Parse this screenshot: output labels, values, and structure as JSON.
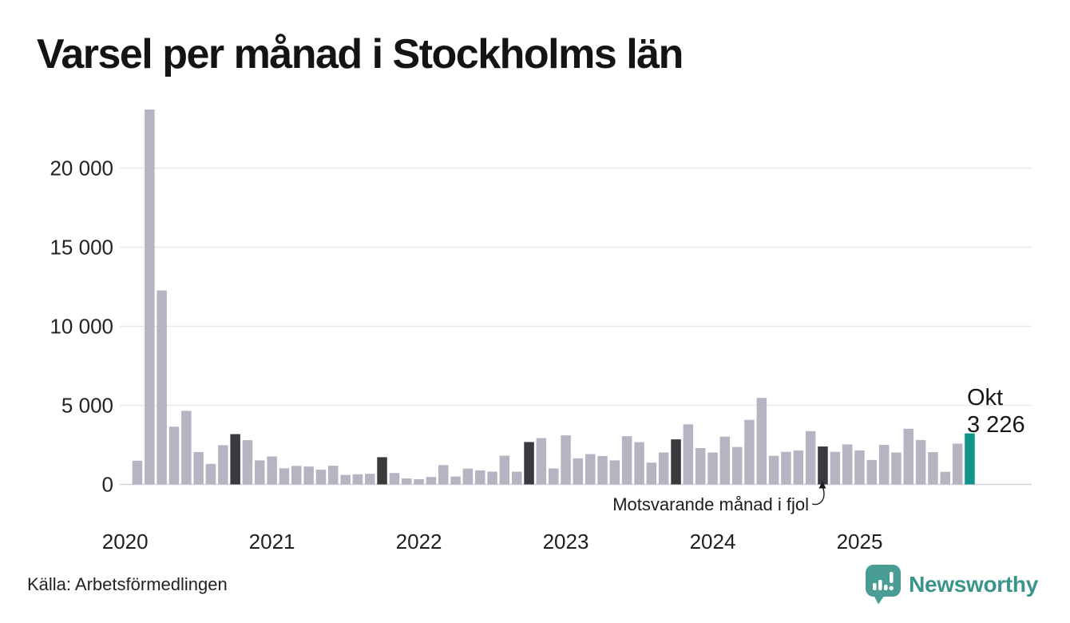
{
  "title": "Varsel per månad i Stockholms län",
  "source": "Källa: Arbetsförmedlingen",
  "brand": {
    "name": "Newsworthy"
  },
  "annotation": {
    "text": "Motsvarande månad i fjol",
    "points_to": "Okt 2024"
  },
  "current_point_label": {
    "month": "Okt",
    "value_text": "3 226"
  },
  "colors": {
    "bar": "#b7b3c2",
    "bar_dark": "#3b393e",
    "bar_current": "#12948a",
    "brand_teal": "#3a948b",
    "logo_bubble": "#4a9d94",
    "gridline": "#e8e7ec",
    "baseline": "#d3d2d8"
  },
  "chart_data": {
    "type": "bar",
    "title": "Varsel per månad i Stockholms län",
    "grid": true,
    "legend": false,
    "ylim": [
      0,
      24000
    ],
    "start_slot": 1,
    "yticks": [
      {
        "value": 0,
        "label": "0"
      },
      {
        "value": 5000,
        "label": "5 000"
      },
      {
        "value": 10000,
        "label": "10 000"
      },
      {
        "value": 15000,
        "label": "15 000"
      },
      {
        "value": 20000,
        "label": "20 000"
      }
    ],
    "year_ticks": [
      {
        "label": "2020",
        "slot": 0
      },
      {
        "label": "2021",
        "slot": 12
      },
      {
        "label": "2022",
        "slot": 24
      },
      {
        "label": "2023",
        "slot": 36
      },
      {
        "label": "2024",
        "slot": 48
      },
      {
        "label": "2025",
        "slot": 60
      }
    ],
    "months": [
      {
        "label": "Feb 2020",
        "value": 1500
      },
      {
        "label": "Mar 2020",
        "value": 23700
      },
      {
        "label": "Apr 2020",
        "value": 12270
      },
      {
        "label": "Maj 2020",
        "value": 3650
      },
      {
        "label": "Jun 2020",
        "value": 4650
      },
      {
        "label": "Jul 2020",
        "value": 2050
      },
      {
        "label": "Aug 2020",
        "value": 1300
      },
      {
        "label": "Sep 2020",
        "value": 2480
      },
      {
        "label": "Okt 2020",
        "value": 3180,
        "style": "dark"
      },
      {
        "label": "Nov 2020",
        "value": 2800
      },
      {
        "label": "Dec 2020",
        "value": 1520
      },
      {
        "label": "Jan 2021",
        "value": 1770
      },
      {
        "label": "Feb 2021",
        "value": 1020
      },
      {
        "label": "Mar 2021",
        "value": 1170
      },
      {
        "label": "Apr 2021",
        "value": 1130
      },
      {
        "label": "Maj 2021",
        "value": 930
      },
      {
        "label": "Jun 2021",
        "value": 1180
      },
      {
        "label": "Jul 2021",
        "value": 600
      },
      {
        "label": "Aug 2021",
        "value": 640
      },
      {
        "label": "Sep 2021",
        "value": 670
      },
      {
        "label": "Okt 2021",
        "value": 1720,
        "style": "dark"
      },
      {
        "label": "Nov 2021",
        "value": 720
      },
      {
        "label": "Dec 2021",
        "value": 380
      },
      {
        "label": "Jan 2022",
        "value": 330
      },
      {
        "label": "Feb 2022",
        "value": 470
      },
      {
        "label": "Mar 2022",
        "value": 1220
      },
      {
        "label": "Apr 2022",
        "value": 500
      },
      {
        "label": "Maj 2022",
        "value": 1000
      },
      {
        "label": "Jun 2022",
        "value": 890
      },
      {
        "label": "Jul 2022",
        "value": 810
      },
      {
        "label": "Aug 2022",
        "value": 1820
      },
      {
        "label": "Sep 2022",
        "value": 810
      },
      {
        "label": "Okt 2022",
        "value": 2680,
        "style": "dark"
      },
      {
        "label": "Nov 2022",
        "value": 2930
      },
      {
        "label": "Dec 2022",
        "value": 1010
      },
      {
        "label": "Jan 2023",
        "value": 3100
      },
      {
        "label": "Feb 2023",
        "value": 1650
      },
      {
        "label": "Mar 2023",
        "value": 1920
      },
      {
        "label": "Apr 2023",
        "value": 1800
      },
      {
        "label": "Maj 2023",
        "value": 1520
      },
      {
        "label": "Jun 2023",
        "value": 3050
      },
      {
        "label": "Jul 2023",
        "value": 2670
      },
      {
        "label": "Aug 2023",
        "value": 1380
      },
      {
        "label": "Sep 2023",
        "value": 2020
      },
      {
        "label": "Okt 2023",
        "value": 2850,
        "style": "dark"
      },
      {
        "label": "Nov 2023",
        "value": 3800
      },
      {
        "label": "Dec 2023",
        "value": 2300
      },
      {
        "label": "Jan 2024",
        "value": 2020
      },
      {
        "label": "Feb 2024",
        "value": 3020
      },
      {
        "label": "Mar 2024",
        "value": 2370
      },
      {
        "label": "Apr 2024",
        "value": 4080
      },
      {
        "label": "Maj 2024",
        "value": 5470
      },
      {
        "label": "Jun 2024",
        "value": 1810
      },
      {
        "label": "Jul 2024",
        "value": 2060
      },
      {
        "label": "Aug 2024",
        "value": 2150
      },
      {
        "label": "Sep 2024",
        "value": 3370
      },
      {
        "label": "Okt 2024",
        "value": 2400,
        "style": "dark"
      },
      {
        "label": "Nov 2024",
        "value": 2060
      },
      {
        "label": "Dec 2024",
        "value": 2530
      },
      {
        "label": "Jan 2025",
        "value": 2150
      },
      {
        "label": "Feb 2025",
        "value": 1550
      },
      {
        "label": "Mar 2025",
        "value": 2500
      },
      {
        "label": "Apr 2025",
        "value": 2020
      },
      {
        "label": "Maj 2025",
        "value": 3520
      },
      {
        "label": "Jun 2025",
        "value": 2810
      },
      {
        "label": "Jul 2025",
        "value": 2040
      },
      {
        "label": "Aug 2025",
        "value": 800
      },
      {
        "label": "Sep 2025",
        "value": 2580
      },
      {
        "label": "Okt 2025",
        "value": 3226,
        "style": "current"
      }
    ]
  }
}
